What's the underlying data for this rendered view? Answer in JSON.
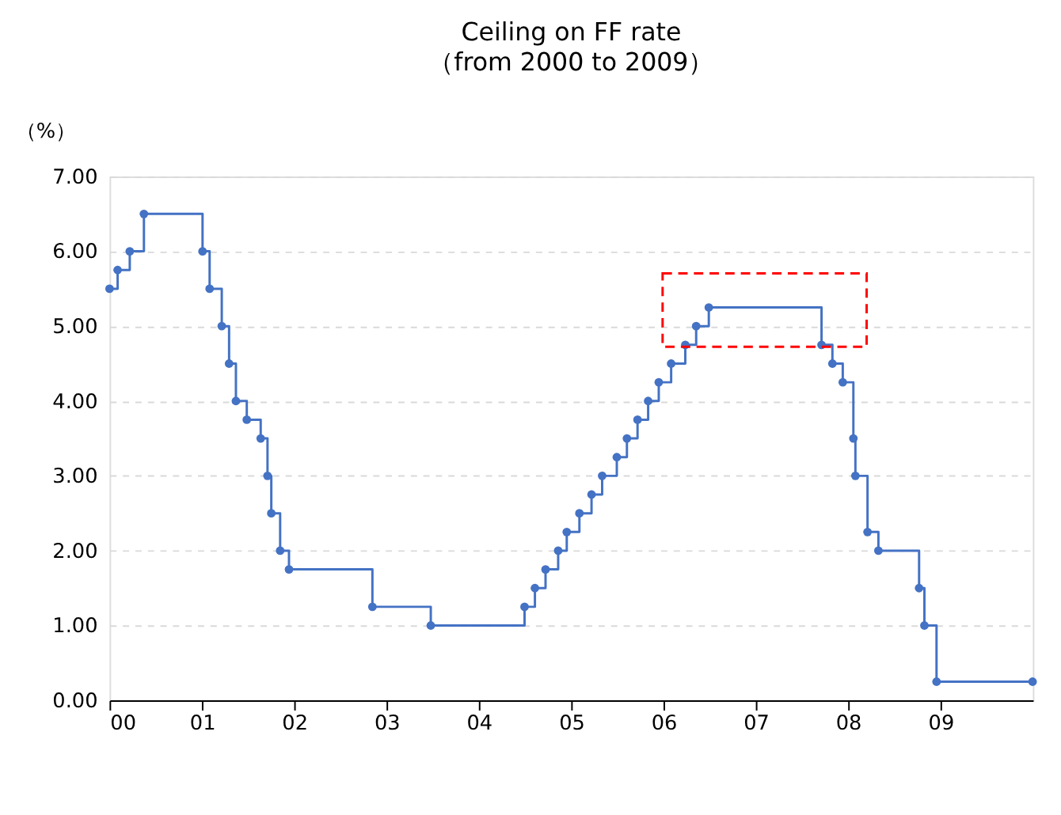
{
  "chart_data": {
    "type": "step",
    "title": "Ceiling on FF rate",
    "subtitle": "（from 2000 to 2009）",
    "ylabel": "（%）",
    "x": [
      "2000-01-01",
      "2000-02-02",
      "2000-03-21",
      "2000-05-16",
      "2001-01-03",
      "2001-01-31",
      "2001-03-20",
      "2001-04-18",
      "2001-05-15",
      "2001-06-27",
      "2001-08-21",
      "2001-09-17",
      "2001-10-02",
      "2001-11-06",
      "2001-12-11",
      "2002-11-06",
      "2003-06-25",
      "2004-06-30",
      "2004-08-10",
      "2004-09-21",
      "2004-11-10",
      "2004-12-14",
      "2005-02-02",
      "2005-03-22",
      "2005-05-03",
      "2005-06-30",
      "2005-08-09",
      "2005-09-20",
      "2005-11-01",
      "2005-12-13",
      "2006-01-31",
      "2006-03-28",
      "2006-05-10",
      "2006-06-29",
      "2007-09-18",
      "2007-10-31",
      "2007-12-11",
      "2008-01-22",
      "2008-01-30",
      "2008-03-18",
      "2008-04-30",
      "2008-10-08",
      "2008-10-29",
      "2008-12-16",
      "2009-12-31"
    ],
    "series": [
      {
        "color": "#4472c4",
        "values": [
          5.5,
          5.75,
          6.0,
          6.5,
          6.0,
          5.5,
          5.0,
          4.5,
          4.0,
          3.75,
          3.5,
          3.0,
          2.5,
          2.0,
          1.75,
          1.25,
          1.0,
          1.25,
          1.5,
          1.75,
          2.0,
          2.25,
          2.5,
          2.75,
          3.0,
          3.25,
          3.5,
          3.75,
          4.0,
          4.25,
          4.5,
          4.75,
          5.0,
          5.25,
          4.75,
          4.5,
          4.25,
          3.5,
          3.0,
          2.25,
          2.0,
          1.5,
          1.0,
          0.25,
          0.25
        ]
      }
    ],
    "xlim": [
      "2000-01-01",
      "2010-01-01"
    ],
    "xticks": [
      {
        "value": "2000-01-01",
        "label": "00"
      },
      {
        "value": "2001-01-01",
        "label": "01"
      },
      {
        "value": "2002-01-01",
        "label": "02"
      },
      {
        "value": "2003-01-01",
        "label": "03"
      },
      {
        "value": "2004-01-01",
        "label": "04"
      },
      {
        "value": "2005-01-01",
        "label": "05"
      },
      {
        "value": "2006-01-01",
        "label": "06"
      },
      {
        "value": "2007-01-01",
        "label": "07"
      },
      {
        "value": "2008-01-01",
        "label": "08"
      },
      {
        "value": "2009-01-01",
        "label": "09"
      }
    ],
    "ylim": [
      0,
      7
    ],
    "yticks": [
      {
        "value": 0,
        "label": "0.00"
      },
      {
        "value": 1,
        "label": "1.00"
      },
      {
        "value": 2,
        "label": "2.00"
      },
      {
        "value": 3,
        "label": "3.00"
      },
      {
        "value": 4,
        "label": "4.00"
      },
      {
        "value": 5,
        "label": "5.00"
      },
      {
        "value": 6,
        "label": "6.00"
      },
      {
        "value": 7,
        "label": "7.00"
      }
    ],
    "grid": "y",
    "marker": "circle",
    "line_style": "solid"
  }
}
